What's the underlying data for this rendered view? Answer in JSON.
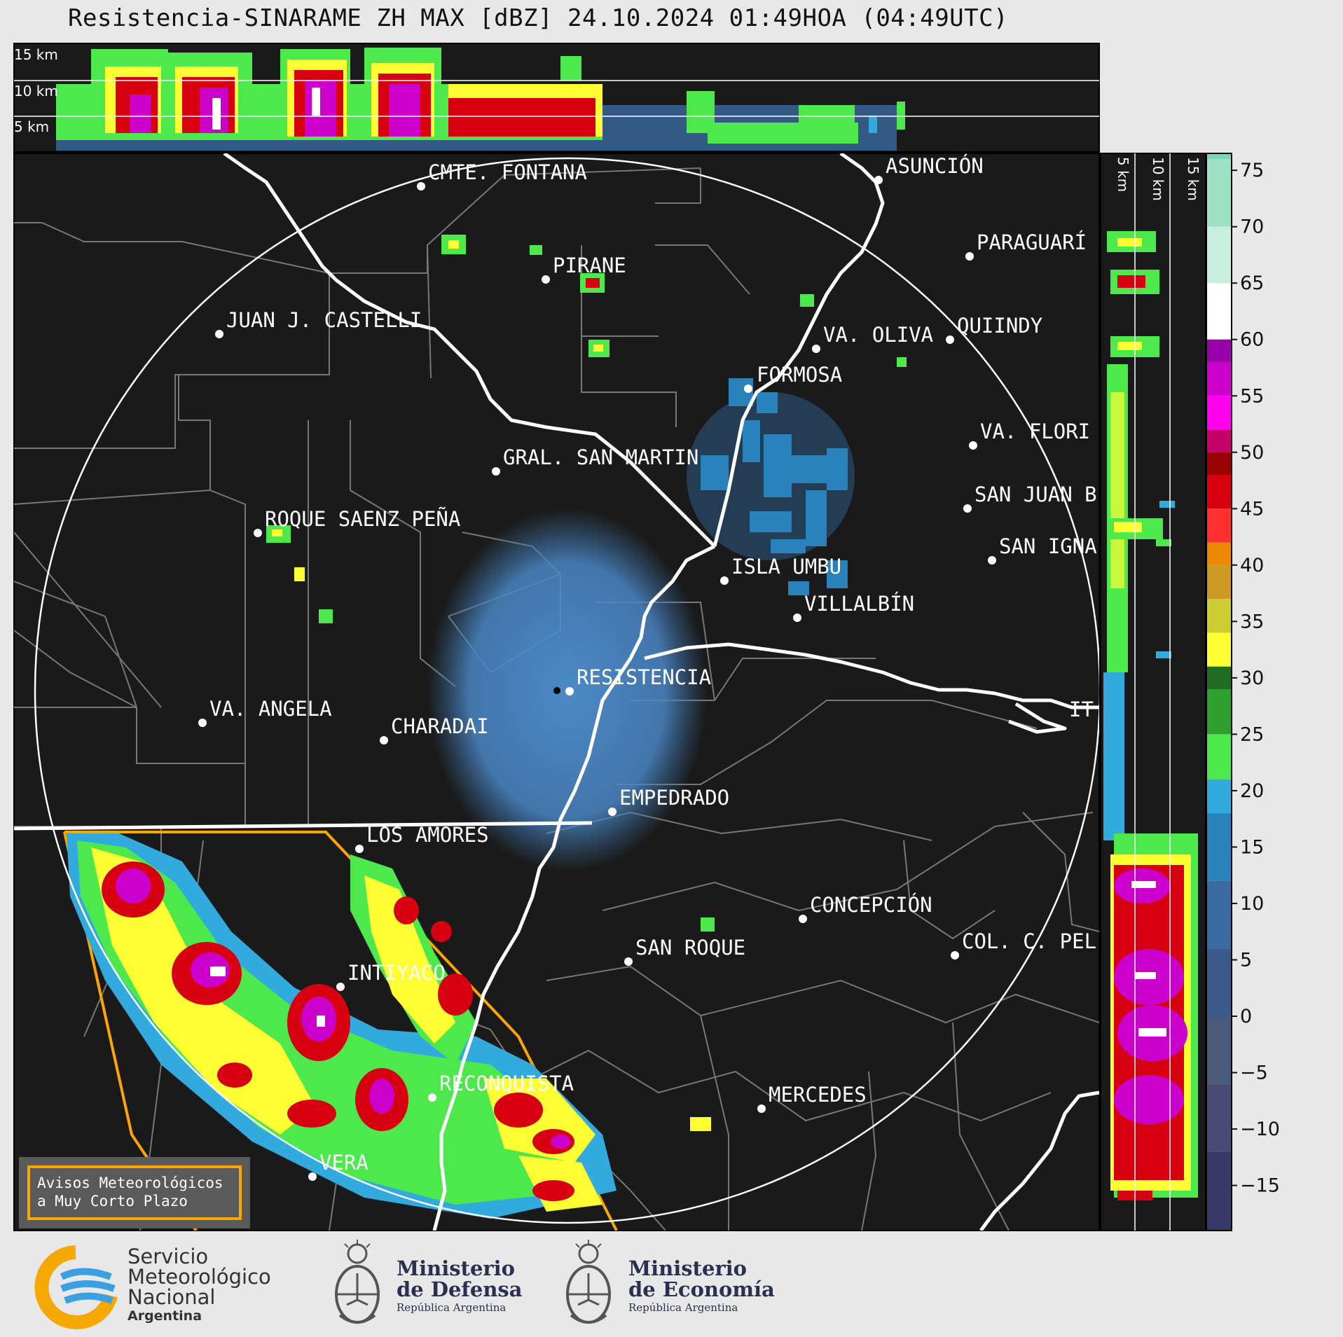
{
  "title": "Resistencia-SINARAME ZH MAX [dBZ] 24.10.2024 01:49HOA (04:49UTC)",
  "height_labels_top": [
    "15 km",
    "10 km",
    "5 km"
  ],
  "height_labels_side": [
    "5 km",
    "10 km",
    "15 km"
  ],
  "cities": [
    {
      "name": "CMTE. FONTANA"
    },
    {
      "name": "ASUNCIÓN"
    },
    {
      "name": "PIRANE"
    },
    {
      "name": "PARAGUARÍ"
    },
    {
      "name": "JUAN J. CASTELLI"
    },
    {
      "name": "VA. OLIVA"
    },
    {
      "name": "QUIINDY"
    },
    {
      "name": "FORMOSA"
    },
    {
      "name": "VA. FLORI"
    },
    {
      "name": "GRAL. SAN MARTIN"
    },
    {
      "name": "SAN JUAN B"
    },
    {
      "name": "ROQUE SAENZ PEÑA"
    },
    {
      "name": "SAN IGNA"
    },
    {
      "name": "ISLA UMBU"
    },
    {
      "name": "VILLALBÍN"
    },
    {
      "name": "RESISTENCIA"
    },
    {
      "name": "VA. ANGELA"
    },
    {
      "name": "CHARADAI"
    },
    {
      "name": "IT"
    },
    {
      "name": "EMPEDRADO"
    },
    {
      "name": "LOS AMORES"
    },
    {
      "name": "CONCEPCIÓN"
    },
    {
      "name": "SAN ROQUE"
    },
    {
      "name": "COL. C. PEL"
    },
    {
      "name": "INTIYACO"
    },
    {
      "name": "RECONQUISTA"
    },
    {
      "name": "MERCEDES"
    },
    {
      "name": "VERA"
    }
  ],
  "colorbar": {
    "unit": "dBZ",
    "ticks": [
      "75",
      "70",
      "65",
      "60",
      "55",
      "50",
      "45",
      "40",
      "35",
      "30",
      "25",
      "20",
      "15",
      "10",
      "5",
      "0",
      "−5",
      "−10",
      "−15"
    ],
    "stops": [
      {
        "value": 76,
        "color": "#7fd4b8"
      },
      {
        "value": 70,
        "color": "#9ee0c4"
      },
      {
        "value": 65,
        "color": "#c8eedd"
      },
      {
        "value": 60,
        "color": "#ffffff"
      },
      {
        "value": 58,
        "color": "#9900aa"
      },
      {
        "value": 55,
        "color": "#cc00cc"
      },
      {
        "value": 52,
        "color": "#ff00ee"
      },
      {
        "value": 50,
        "color": "#c4006a"
      },
      {
        "value": 48,
        "color": "#990000"
      },
      {
        "value": 45,
        "color": "#d60010"
      },
      {
        "value": 42,
        "color": "#ff3030"
      },
      {
        "value": 40,
        "color": "#ee8800"
      },
      {
        "value": 37,
        "color": "#cc9922"
      },
      {
        "value": 34,
        "color": "#cccc33"
      },
      {
        "value": 31,
        "color": "#ffff33"
      },
      {
        "value": 29,
        "color": "#226b22"
      },
      {
        "value": 25,
        "color": "#2f9f2f"
      },
      {
        "value": 21,
        "color": "#4ce84c"
      },
      {
        "value": 18,
        "color": "#33aadd"
      },
      {
        "value": 12,
        "color": "#2a82bb"
      },
      {
        "value": 6,
        "color": "#3a6aa0"
      },
      {
        "value": 0,
        "color": "#3a5a8a"
      },
      {
        "value": -6,
        "color": "#4a5a7a"
      },
      {
        "value": -12,
        "color": "#4a4a74"
      },
      {
        "value": -18,
        "color": "#383868"
      }
    ]
  },
  "warning_box": {
    "line1": "Avisos Meteorológicos",
    "line2": "a Muy Corto Plazo"
  },
  "logos": {
    "smn_line1": "Servicio",
    "smn_line2": "Meteorológico",
    "smn_line3": "Nacional",
    "smn_line4": "Argentina",
    "def_line1": "Ministerio",
    "def_line2": "de Defensa",
    "def_line3": "República Argentina",
    "eco_line1": "Ministerio",
    "eco_line2": "de Economía",
    "eco_line3": "República Argentina"
  }
}
